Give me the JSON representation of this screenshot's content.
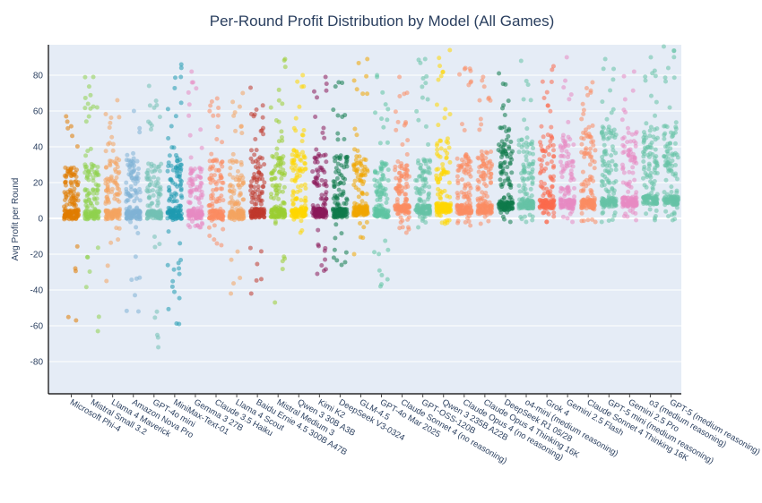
{
  "chart_data": {
    "type": "scatter",
    "title": "Per-Round Profit Distribution by Model (All Games)",
    "xlabel": "",
    "ylabel": "Avg Profit per Round",
    "ylim": [
      -98,
      97
    ],
    "yticks": [
      -80,
      -60,
      -40,
      -20,
      0,
      20,
      40,
      60,
      80
    ],
    "grid": true,
    "legend": "none",
    "categories": [
      "Microsoft Phi-4",
      "Mistral Small 3.2",
      "Llama 4 Maverick",
      "Amazon Nova Pro",
      "GPT-4o mini",
      "MiniMax-Text-01",
      "Gemma 3 27B",
      "Claude 3.5 Haiku",
      "Llama 4 Scout",
      "Baidu Ernie 4.5 300B A47B",
      "Mistral Medium 3",
      "Qwen 3 30B A3B",
      "Kimi K2",
      "DeepSeek V3-0324",
      "GLM-4.5",
      "GPT-4o Mar 2025",
      "Claude Sonnet 4 (no reasoning)",
      "GPT-OSS-120B",
      "Qwen 3 235B A22B",
      "Claude Opus 4 (no reasoning)",
      "Claude Opus 4 Thinking 16K",
      "DeepSeek R1 05/28",
      "o4-mini (medium reasoning)",
      "Grok 4",
      "Gemini 2.5 Flash",
      "Claude Sonnet 4 Thinking 16K",
      "GPT-5 mini (medium reasoning)",
      "Gemini 2.5 Pro",
      "o3 (medium reasoning)",
      "GPT-5 (medium reasoning)"
    ],
    "series": [
      {
        "color": "#e07b00",
        "median": 2,
        "q3": 14,
        "max": 57,
        "min": -57
      },
      {
        "color": "#8fd14f",
        "median": 2,
        "q3": 15,
        "max": 79,
        "min": -63
      },
      {
        "color": "#f4a460",
        "median": 2,
        "q3": 16,
        "max": 66,
        "min": -35
      },
      {
        "color": "#7fb3d5",
        "median": 2,
        "q3": 16,
        "max": 60,
        "min": -52
      },
      {
        "color": "#72c1b4",
        "median": 2,
        "q3": 15,
        "max": 74,
        "min": -72
      },
      {
        "color": "#1f9bb0",
        "median": 2,
        "q3": 16,
        "max": 86,
        "min": -59
      },
      {
        "color": "#e78ac3",
        "median": 2,
        "q3": 14,
        "max": 82,
        "min": -5
      },
      {
        "color": "#fc8d62",
        "median": 2,
        "q3": 16,
        "max": 67,
        "min": -15
      },
      {
        "color": "#f4a460",
        "median": 2,
        "q3": 16,
        "max": 70,
        "min": -42
      },
      {
        "color": "#c0392b",
        "median": 3,
        "q3": 19,
        "max": 73,
        "min": -42
      },
      {
        "color": "#9acd32",
        "median": 3,
        "q3": 18,
        "max": 89,
        "min": -47
      },
      {
        "color": "#ffd700",
        "median": 3,
        "q3": 19,
        "max": 80,
        "min": -8
      },
      {
        "color": "#8b1a5a",
        "median": 3,
        "q3": 18,
        "max": 79,
        "min": -31
      },
      {
        "color": "#0e7a4a",
        "median": 3,
        "q3": 18,
        "max": 76,
        "min": -26
      },
      {
        "color": "#f0a500",
        "median": 4,
        "q3": 18,
        "max": 89,
        "min": -20
      },
      {
        "color": "#5fc4a3",
        "median": 3,
        "q3": 16,
        "max": 80,
        "min": -38
      },
      {
        "color": "#fc8d62",
        "median": 5,
        "q3": 18,
        "max": 79,
        "min": -8
      },
      {
        "color": "#66c2a5",
        "median": 5,
        "q3": 18,
        "max": 89,
        "min": -5
      },
      {
        "color": "#ffd700",
        "median": 6,
        "q3": 24,
        "max": 94,
        "min": -3
      },
      {
        "color": "#fc8d62",
        "median": 5,
        "q3": 19,
        "max": 84,
        "min": -4
      },
      {
        "color": "#fc8d62",
        "median": 5,
        "q3": 20,
        "max": 79,
        "min": -3
      },
      {
        "color": "#0e7a4a",
        "median": 7,
        "q3": 25,
        "max": 81,
        "min": -2
      },
      {
        "color": "#66c2a5",
        "median": 8,
        "q3": 25,
        "max": 88,
        "min": -2
      },
      {
        "color": "#fc6a4d",
        "median": 8,
        "q3": 26,
        "max": 85,
        "min": -2
      },
      {
        "color": "#e78ac3",
        "median": 8,
        "q3": 26,
        "max": 90,
        "min": -2
      },
      {
        "color": "#fc8d62",
        "median": 8,
        "q3": 27,
        "max": 76,
        "min": -2
      },
      {
        "color": "#66c2a5",
        "median": 9,
        "q3": 28,
        "max": 89,
        "min": -2
      },
      {
        "color": "#e78ac3",
        "median": 9,
        "q3": 28,
        "max": 82,
        "min": -1
      },
      {
        "color": "#66c2a5",
        "median": 10,
        "q3": 30,
        "max": 90,
        "min": -1
      },
      {
        "color": "#66c2a5",
        "median": 10,
        "q3": 30,
        "max": 96,
        "min": -1
      }
    ]
  }
}
